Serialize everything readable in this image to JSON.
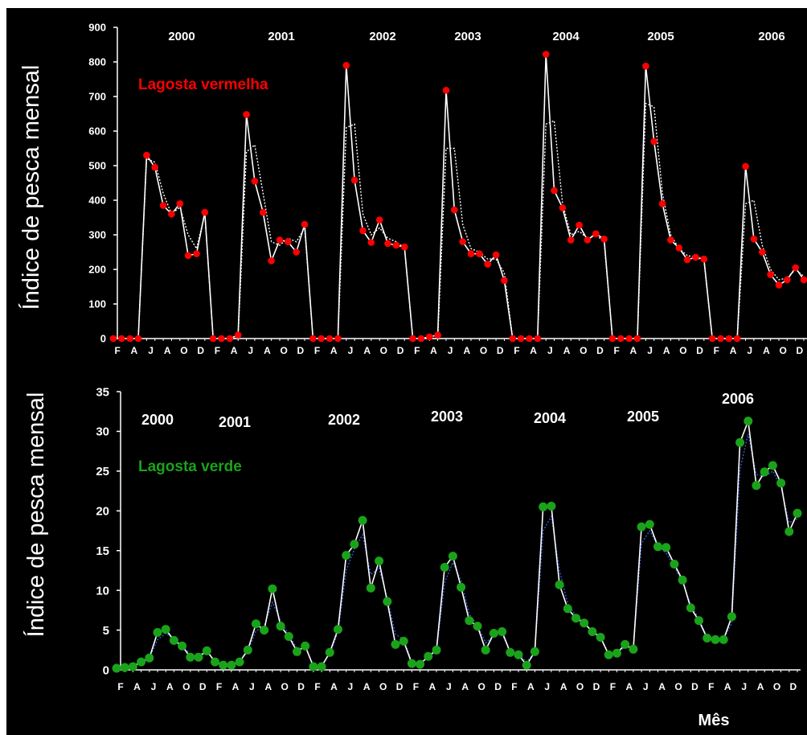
{
  "chart_data": [
    {
      "type": "line",
      "ylabel": "Índice de pesca mensal",
      "series_label": "Lagosta vermelha",
      "ylim": [
        0,
        900
      ],
      "yticks": [
        "0",
        "100",
        "200",
        "300",
        "400",
        "500",
        "600",
        "700",
        "800",
        "900"
      ],
      "years": [
        "2000",
        "2001",
        "2002",
        "2003",
        "2004",
        "2005",
        "2006"
      ],
      "month_labels": [
        "F",
        "A",
        "J",
        "A",
        "O",
        "D"
      ],
      "colors": {
        "markers": "#ff0000",
        "observed_line": "#ffffff",
        "fitted_line": "#ffffff",
        "label": "#ff0000"
      },
      "series": [
        {
          "name": "Lagosta vermelha",
          "values": [
            0,
            0,
            0,
            0,
            530,
            495,
            385,
            360,
            390,
            240,
            245,
            365,
            0,
            0,
            0,
            10,
            648,
            455,
            365,
            225,
            285,
            280,
            250,
            330,
            0,
            0,
            0,
            0,
            790,
            458,
            312,
            278,
            343,
            275,
            270,
            265,
            0,
            0,
            5,
            10,
            718,
            372,
            280,
            245,
            245,
            215,
            242,
            168,
            0,
            0,
            0,
            0,
            822,
            428,
            378,
            285,
            328,
            285,
            303,
            288,
            0,
            0,
            0,
            0,
            788,
            570,
            390,
            285,
            262,
            228,
            235,
            230,
            0,
            0,
            0,
            0,
            498,
            288,
            250,
            185,
            155,
            170,
            205,
            170
          ]
        },
        {
          "name": "",
          "values": [
            0,
            0,
            0,
            0,
            520,
            510,
            420,
            360,
            380,
            300,
            260,
            360,
            0,
            0,
            0,
            0,
            540,
            560,
            420,
            280,
            270,
            290,
            280,
            320,
            0,
            0,
            0,
            0,
            610,
            620,
            360,
            300,
            320,
            290,
            280,
            262,
            0,
            0,
            0,
            0,
            550,
            550,
            330,
            260,
            250,
            230,
            230,
            190,
            0,
            0,
            0,
            0,
            620,
            630,
            390,
            300,
            310,
            290,
            300,
            280,
            0,
            0,
            0,
            0,
            680,
            670,
            420,
            300,
            260,
            240,
            235,
            225,
            0,
            0,
            0,
            0,
            390,
            400,
            270,
            200,
            170,
            175,
            200,
            180
          ]
        }
      ]
    },
    {
      "type": "line",
      "ylabel": "Índice de pesca mensal",
      "series_label": "Lagosta verde",
      "ylim": [
        0,
        35
      ],
      "yticks": [
        "0",
        "5",
        "10",
        "15",
        "20",
        "25",
        "30",
        "35"
      ],
      "years": [
        "2000",
        "2001",
        "2002",
        "2003",
        "2004",
        "2005",
        "2006"
      ],
      "month_labels": [
        "F",
        "A",
        "J",
        "A",
        "O",
        "D"
      ],
      "xlabel": "Mês",
      "colors": {
        "markers": "#1aa31a",
        "observed_line": "#ffffff",
        "fitted_line": "#3a5bd9",
        "label": "#1aa31a"
      },
      "series": [
        {
          "name": "Lagosta verde",
          "values": [
            0.2,
            0.3,
            0.4,
            1.0,
            1.5,
            4.7,
            5.1,
            3.7,
            3.0,
            1.6,
            1.6,
            2.4,
            1.0,
            0.6,
            0.6,
            1.0,
            2.5,
            5.8,
            5.0,
            10.2,
            5.5,
            4.2,
            2.3,
            3.0,
            0.4,
            0.4,
            2.2,
            5.1,
            14.4,
            15.8,
            18.8,
            10.3,
            13.7,
            8.6,
            3.2,
            3.6,
            0.8,
            0.7,
            1.7,
            2.5,
            12.9,
            14.3,
            10.4,
            6.2,
            5.5,
            2.5,
            4.6,
            4.8,
            2.2,
            1.9,
            0.6,
            2.3,
            20.5,
            20.6,
            10.7,
            7.7,
            6.5,
            5.9,
            4.8,
            4.1,
            1.9,
            2.1,
            3.2,
            2.6,
            18.0,
            18.3,
            15.5,
            15.4,
            13.3,
            11.3,
            7.8,
            6.2,
            4.0,
            3.8,
            3.8,
            6.7,
            28.6,
            31.3,
            23.2,
            24.9,
            25.7,
            23.5,
            17.4,
            19.7
          ]
        },
        {
          "name": "",
          "values": [
            0.3,
            0.3,
            0.5,
            0.9,
            1.4,
            3.8,
            4.6,
            3.9,
            3.0,
            2.0,
            1.8,
            2.3,
            1.1,
            0.7,
            0.7,
            1.1,
            2.3,
            4.9,
            5.5,
            8.5,
            6.2,
            4.4,
            2.7,
            2.9,
            0.6,
            0.6,
            2.0,
            4.7,
            12.5,
            15.2,
            17.0,
            12.0,
            12.8,
            9.0,
            4.5,
            3.8,
            1.0,
            0.8,
            1.6,
            2.4,
            11.0,
            13.5,
            11.2,
            7.0,
            5.6,
            3.4,
            4.3,
            4.5,
            2.3,
            2.0,
            1.0,
            2.2,
            17.5,
            19.3,
            12.5,
            8.3,
            6.8,
            5.9,
            4.9,
            4.2,
            2.0,
            2.1,
            2.9,
            2.7,
            15.9,
            17.5,
            15.6,
            14.7,
            13.0,
            11.0,
            8.2,
            6.4,
            4.1,
            3.9,
            3.9,
            5.9,
            25.2,
            29.7,
            24.6,
            24.3,
            25.0,
            23.0,
            18.5,
            19.0
          ]
        }
      ]
    }
  ]
}
